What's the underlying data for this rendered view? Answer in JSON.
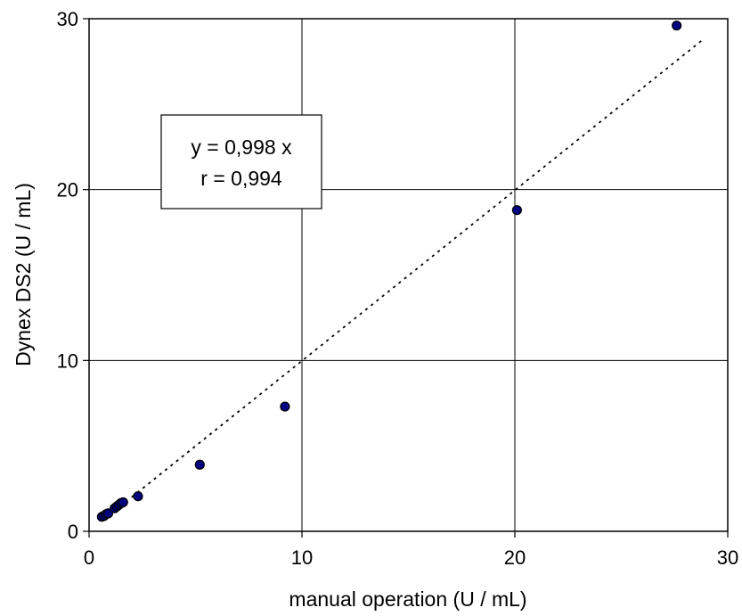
{
  "chart_data": {
    "type": "scatter",
    "xlabel": "manual operation (U / mL)",
    "ylabel": "Dynex DS2 (U / mL)",
    "xlim": [
      0,
      30
    ],
    "ylim": [
      0,
      30
    ],
    "xticks": [
      0,
      10,
      20,
      30
    ],
    "yticks": [
      0,
      10,
      20,
      30
    ],
    "x_tick_labels": [
      "0",
      "10",
      "20",
      "30"
    ],
    "y_tick_labels": [
      "0",
      "10",
      "20",
      "30"
    ],
    "grid": true,
    "point_color": "#000080",
    "trendline": {
      "style": "dotted",
      "slope": 0.998,
      "x_range": [
        2.0,
        28.8
      ]
    },
    "annotation": {
      "lines": [
        "y = 0,998 x",
        "r = 0,994"
      ]
    },
    "points": [
      {
        "x": 0.6,
        "y": 0.85
      },
      {
        "x": 0.7,
        "y": 0.9
      },
      {
        "x": 0.8,
        "y": 1.0
      },
      {
        "x": 0.9,
        "y": 1.05
      },
      {
        "x": 1.2,
        "y": 1.35
      },
      {
        "x": 1.3,
        "y": 1.45
      },
      {
        "x": 1.4,
        "y": 1.55
      },
      {
        "x": 1.5,
        "y": 1.65
      },
      {
        "x": 1.6,
        "y": 1.7
      },
      {
        "x": 2.3,
        "y": 2.05
      },
      {
        "x": 5.2,
        "y": 3.9
      },
      {
        "x": 9.2,
        "y": 7.3
      },
      {
        "x": 20.1,
        "y": 18.8
      },
      {
        "x": 27.6,
        "y": 29.6
      }
    ]
  }
}
